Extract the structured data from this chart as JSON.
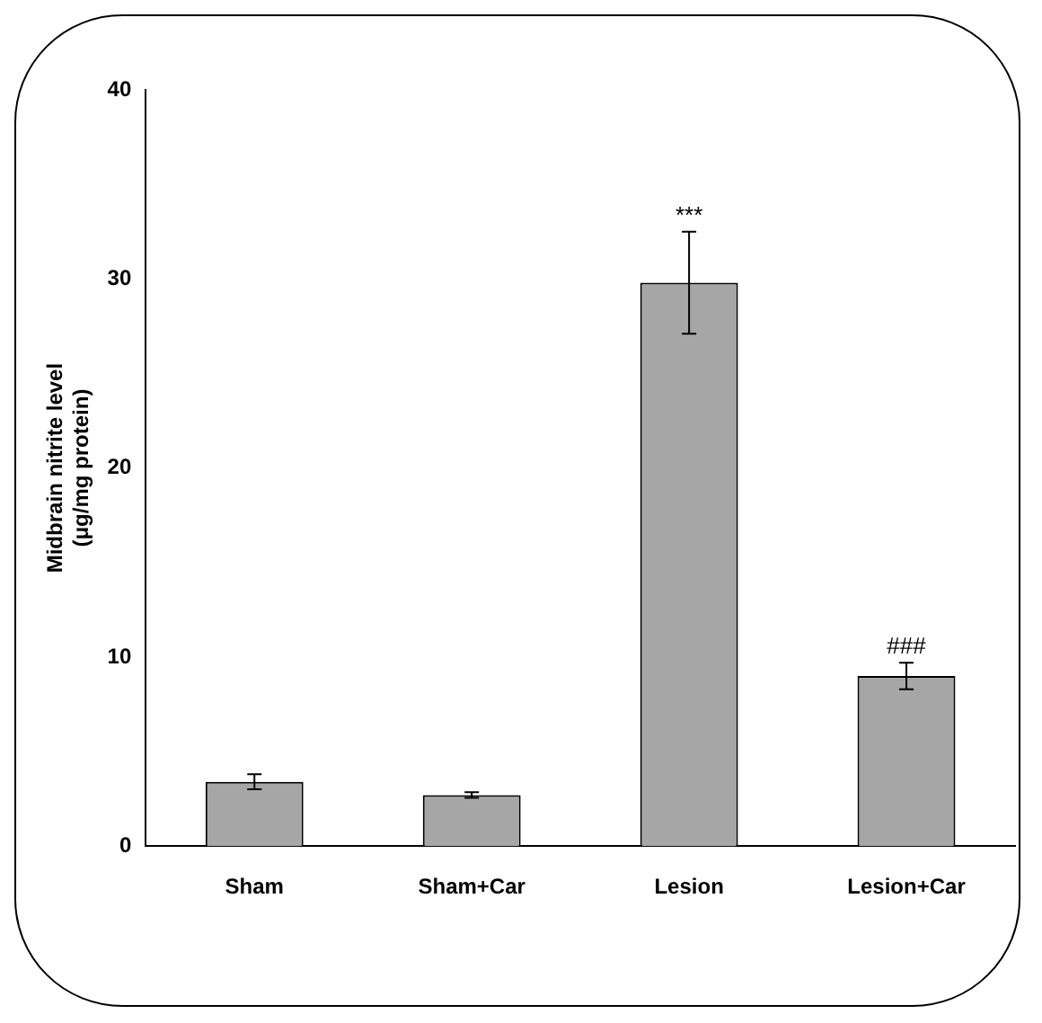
{
  "chart_data": {
    "type": "bar",
    "ylabel": "Midbrain nitrite level\n(μg/mg protein)",
    "categories": [
      "Sham",
      "Sham+Car",
      "Lesion",
      "Lesion+Car"
    ],
    "values": [
      3.4,
      2.7,
      29.8,
      9.0
    ],
    "errors": [
      0.4,
      0.15,
      2.7,
      0.7
    ],
    "color": "#a6a6a6",
    "ylim": [
      0,
      40
    ],
    "yticks": [
      0,
      10,
      20,
      30,
      40
    ],
    "grid": false,
    "legend": false,
    "annotations": [
      {
        "text": "***",
        "x": "Lesion",
        "y": 32.5
      },
      {
        "text": "###",
        "x": "Lesion+Car",
        "y": 9.7
      }
    ]
  }
}
